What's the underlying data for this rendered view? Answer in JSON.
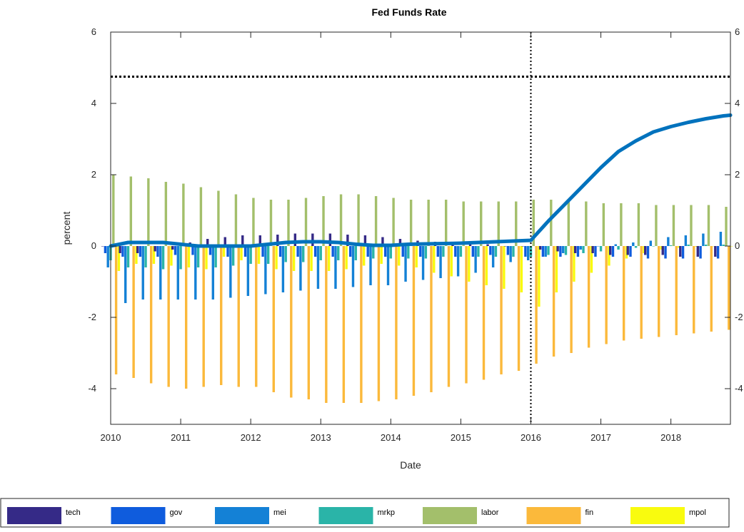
{
  "chart_data": {
    "type": "bar",
    "title": "Fed Funds Rate",
    "xlabel": "Date",
    "ylabel": "percent",
    "xlim": [
      2010,
      2018.85
    ],
    "ylim": [
      -5,
      6
    ],
    "x_ticks": [
      "2010",
      "2011",
      "2012",
      "2013",
      "2014",
      "2015",
      "2016",
      "2017",
      "2018"
    ],
    "y_ticks": [
      "6",
      "4",
      "2",
      "0",
      "-2",
      "-4"
    ],
    "right_y_ticks": [
      "6",
      "4",
      "2",
      "0",
      "-2",
      "-4"
    ],
    "grid": false,
    "legend_position": "bottom",
    "forecast_start": 2016.0,
    "reference_level": 4.75,
    "series_colors": {
      "tech": "#352a87",
      "gov": "#0f5cdd",
      "mei": "#1481d6",
      "mrkp": "#2ab4a8",
      "labor": "#a3bf6b",
      "fin": "#fbb93b",
      "mpol": "#f9fb0e"
    },
    "legend_order": [
      "tech",
      "gov",
      "mei",
      "mrkp",
      "labor",
      "fin",
      "mpol"
    ],
    "bar_dates": [
      2010.0,
      2010.25,
      2010.5,
      2010.75,
      2011.0,
      2011.25,
      2011.5,
      2011.75,
      2012.0,
      2012.25,
      2012.5,
      2012.75,
      2013.0,
      2013.25,
      2013.5,
      2013.75,
      2014.0,
      2014.25,
      2014.5,
      2014.75,
      2015.0,
      2015.25,
      2015.5,
      2015.75,
      2016.0,
      2016.25,
      2016.5,
      2016.75,
      2017.0,
      2017.25,
      2017.5,
      2017.75,
      2018.0,
      2018.25,
      2018.5,
      2018.75
    ],
    "series": [
      {
        "name": "tech",
        "values": [
          0.0,
          -0.2,
          -0.2,
          -0.15,
          -0.1,
          0.1,
          0.2,
          0.25,
          0.3,
          0.3,
          0.32,
          0.35,
          0.35,
          0.35,
          0.32,
          0.3,
          0.25,
          0.2,
          0.15,
          0.12,
          0.1,
          0.08,
          0.05,
          0.0,
          0.0,
          -0.1,
          -0.15,
          -0.2,
          -0.2,
          -0.25,
          -0.25,
          -0.25,
          -0.25,
          -0.3,
          -0.3,
          -0.3
        ]
      },
      {
        "name": "gov",
        "values": [
          -0.2,
          -0.3,
          -0.3,
          -0.3,
          -0.25,
          -0.25,
          -0.25,
          -0.3,
          -0.3,
          -0.3,
          -0.3,
          -0.3,
          -0.3,
          -0.3,
          -0.3,
          -0.3,
          -0.3,
          -0.3,
          -0.3,
          -0.3,
          -0.3,
          -0.3,
          -0.25,
          -0.25,
          -0.3,
          -0.3,
          -0.3,
          -0.3,
          -0.3,
          -0.3,
          -0.3,
          -0.35,
          -0.35,
          -0.35,
          -0.35,
          -0.35
        ]
      },
      {
        "name": "mei",
        "values": [
          -0.6,
          -1.6,
          -1.5,
          -1.5,
          -1.5,
          -1.5,
          -1.5,
          -1.45,
          -1.4,
          -1.35,
          -1.3,
          -1.25,
          -1.2,
          -1.2,
          -1.15,
          -1.1,
          -1.1,
          -1.0,
          -0.95,
          -0.9,
          -0.85,
          -0.75,
          -0.6,
          -0.45,
          -0.4,
          -0.3,
          -0.2,
          -0.1,
          0.0,
          0.05,
          0.1,
          0.15,
          0.25,
          0.3,
          0.35,
          0.4
        ]
      },
      {
        "name": "mrkp",
        "values": [
          -0.4,
          -0.6,
          -0.6,
          -0.65,
          -0.65,
          -0.6,
          -0.6,
          -0.55,
          -0.5,
          -0.5,
          -0.45,
          -0.45,
          -0.4,
          -0.4,
          -0.4,
          -0.35,
          -0.35,
          -0.35,
          -0.35,
          -0.3,
          -0.3,
          -0.3,
          -0.3,
          -0.3,
          -0.3,
          -0.25,
          -0.25,
          -0.2,
          -0.15,
          -0.1,
          -0.05,
          0.0,
          0.02,
          0.04,
          0.04,
          0.04
        ]
      },
      {
        "name": "labor",
        "values": [
          2.0,
          1.95,
          1.9,
          1.8,
          1.75,
          1.65,
          1.55,
          1.45,
          1.35,
          1.3,
          1.3,
          1.35,
          1.4,
          1.45,
          1.45,
          1.4,
          1.35,
          1.3,
          1.3,
          1.3,
          1.25,
          1.25,
          1.25,
          1.25,
          1.3,
          1.3,
          1.25,
          1.25,
          1.2,
          1.2,
          1.2,
          1.15,
          1.15,
          1.15,
          1.15,
          1.1
        ]
      },
      {
        "name": "fin",
        "values": [
          -3.6,
          -3.7,
          -3.85,
          -3.95,
          -4.0,
          -3.95,
          -3.9,
          -3.95,
          -3.95,
          -4.1,
          -4.25,
          -4.3,
          -4.4,
          -4.4,
          -4.4,
          -4.35,
          -4.3,
          -4.2,
          -4.1,
          -3.95,
          -3.85,
          -3.75,
          -3.6,
          -3.5,
          -3.3,
          -3.1,
          -3.0,
          -2.85,
          -2.75,
          -2.65,
          -2.6,
          -2.55,
          -2.5,
          -2.45,
          -2.4,
          -2.35
        ]
      },
      {
        "name": "mpol",
        "values": [
          -0.7,
          -0.5,
          -0.5,
          -0.55,
          -0.6,
          -0.65,
          -0.3,
          -0.4,
          -0.5,
          -0.65,
          -0.7,
          -0.7,
          -0.7,
          -0.65,
          -0.55,
          -0.5,
          -0.55,
          -0.6,
          -0.75,
          -0.85,
          -1.0,
          -1.1,
          -1.2,
          -1.3,
          -1.7,
          -1.3,
          -1.0,
          -0.75,
          -0.55,
          -0.35,
          -0.2,
          -0.1,
          -0.05,
          -0.02,
          0.0,
          0.0
        ]
      }
    ],
    "line_series": {
      "name": "Fed Funds Rate",
      "color": "#0072bd",
      "x": [
        2010.0,
        2010.25,
        2010.5,
        2010.75,
        2011.0,
        2011.25,
        2011.5,
        2011.75,
        2012.0,
        2012.25,
        2012.5,
        2012.75,
        2013.0,
        2013.25,
        2013.5,
        2013.75,
        2014.0,
        2014.25,
        2014.5,
        2014.75,
        2015.0,
        2015.25,
        2015.5,
        2015.75,
        2016.0,
        2016.25,
        2016.5,
        2016.75,
        2017.0,
        2017.25,
        2017.5,
        2017.75,
        2018.0,
        2018.25,
        2018.5,
        2018.75,
        2018.85
      ],
      "y": [
        0.0,
        0.1,
        0.1,
        0.1,
        0.05,
        0.0,
        0.0,
        0.0,
        0.0,
        0.05,
        0.1,
        0.12,
        0.12,
        0.1,
        0.05,
        0.02,
        0.02,
        0.05,
        0.06,
        0.07,
        0.08,
        0.1,
        0.12,
        0.14,
        0.16,
        0.7,
        1.2,
        1.7,
        2.2,
        2.65,
        2.95,
        3.2,
        3.35,
        3.47,
        3.57,
        3.65,
        3.67
      ]
    }
  }
}
